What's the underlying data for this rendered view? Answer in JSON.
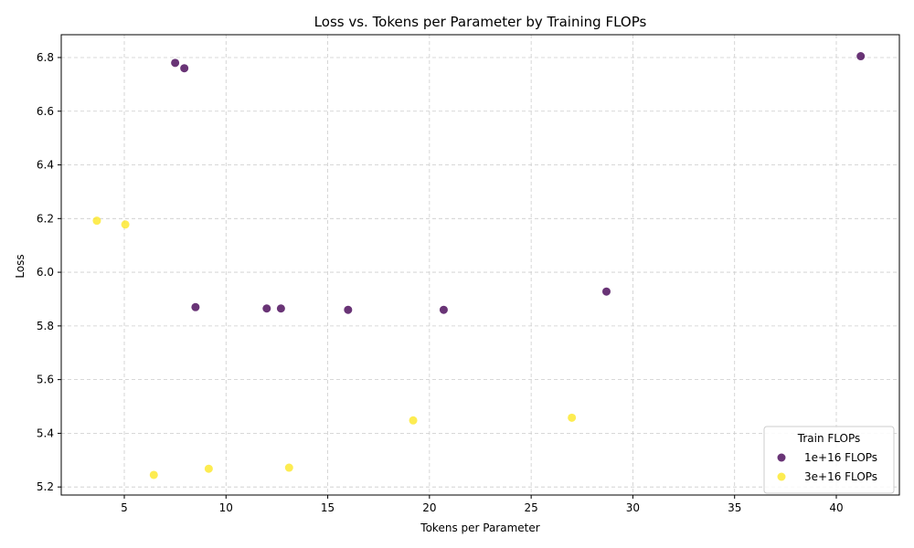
{
  "chart_data": {
    "type": "scatter",
    "title": "Loss vs. Tokens per Parameter by Training FLOPs",
    "xlabel": "Tokens per Parameter",
    "ylabel": "Loss",
    "xlim": [
      1.9,
      43.1
    ],
    "ylim": [
      5.17,
      6.885
    ],
    "xticks": [
      5,
      10,
      15,
      20,
      25,
      30,
      35,
      40
    ],
    "yticks": [
      5.2,
      5.4,
      5.6,
      5.8,
      6.0,
      6.2,
      6.4,
      6.6,
      6.8
    ],
    "ytick_labels": [
      "5.2",
      "5.4",
      "5.6",
      "5.8",
      "6.0",
      "6.2",
      "6.4",
      "6.6",
      "6.8"
    ],
    "grid": true,
    "legend": {
      "title": "Train FLOPs",
      "placement": "lower right"
    },
    "series": [
      {
        "name": "1e+16 FLOPs",
        "color": "#440154",
        "points": [
          {
            "x": 7.5,
            "y": 6.78
          },
          {
            "x": 7.95,
            "y": 6.76
          },
          {
            "x": 8.5,
            "y": 5.87
          },
          {
            "x": 12.0,
            "y": 5.865
          },
          {
            "x": 12.7,
            "y": 5.865
          },
          {
            "x": 16.0,
            "y": 5.86
          },
          {
            "x": 20.7,
            "y": 5.86
          },
          {
            "x": 28.7,
            "y": 5.928
          },
          {
            "x": 41.2,
            "y": 6.805
          }
        ]
      },
      {
        "name": "3e+16 FLOPs",
        "color": "#fde725",
        "points": [
          {
            "x": 3.65,
            "y": 6.192
          },
          {
            "x": 5.05,
            "y": 6.178
          },
          {
            "x": 6.45,
            "y": 5.245
          },
          {
            "x": 9.15,
            "y": 5.268
          },
          {
            "x": 13.1,
            "y": 5.272
          },
          {
            "x": 19.2,
            "y": 5.448
          },
          {
            "x": 27.0,
            "y": 5.458
          }
        ]
      }
    ]
  }
}
